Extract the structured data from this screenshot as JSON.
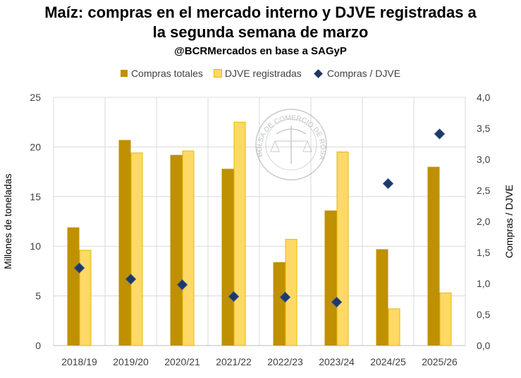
{
  "title_line1": "Maíz: compras en el mercado interno y DJVE registradas a",
  "title_line2": "la segunda semana de marzo",
  "subtitle": "@BCRMercados en base a SAGyP",
  "watermark_text": "BOLSA DE COMERCIO DE ROSARIO",
  "colors": {
    "compras": "#BF9000",
    "djve": "#FFD966",
    "djve_border": "#E6B800",
    "ratio": "#1F3864",
    "grid": "#D9D9D9"
  },
  "chart_data": {
    "type": "bar",
    "title": "Maíz: compras en el mercado interno y DJVE registradas a la segunda semana de marzo",
    "subtitle": "@BCRMercados en base a SAGyP",
    "categories": [
      "2018/19",
      "2019/20",
      "2020/21",
      "2021/22",
      "2022/23",
      "2023/24",
      "2024/25",
      "2025/26"
    ],
    "series": [
      {
        "name": "Compras totales",
        "type": "bar",
        "axis": "left",
        "values": [
          11.9,
          20.7,
          19.2,
          17.8,
          8.4,
          13.6,
          9.7,
          18.0
        ]
      },
      {
        "name": "DJVE registradas",
        "type": "bar",
        "axis": "left",
        "values": [
          9.6,
          19.4,
          19.6,
          22.5,
          10.7,
          19.5,
          3.7,
          5.3
        ]
      },
      {
        "name": "Compras / DJVE",
        "type": "scatter",
        "marker": "diamond",
        "axis": "right",
        "values": [
          1.25,
          1.07,
          0.98,
          0.79,
          0.78,
          0.7,
          2.61,
          3.41
        ]
      }
    ],
    "ylabel": "Millones de toneladas",
    "ylabel_right": "Compras / DJVE",
    "ylim": [
      0,
      25
    ],
    "yticks": [
      "0",
      "5",
      "10",
      "15",
      "20",
      "25"
    ],
    "ylim_right": [
      0,
      4.0
    ],
    "yticks_right": [
      "0,0",
      "0,5",
      "1,0",
      "1,5",
      "2,0",
      "2,5",
      "3,0",
      "3,5",
      "4,0"
    ],
    "grid": true,
    "legend": "top"
  }
}
